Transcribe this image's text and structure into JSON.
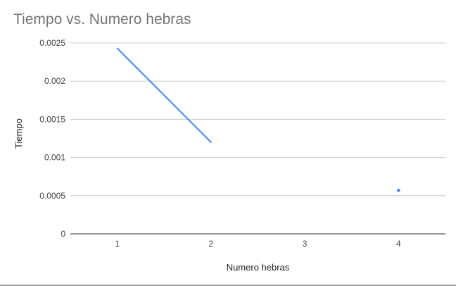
{
  "chart_data": {
    "type": "line",
    "title": "Tiempo vs. Numero hebras",
    "xlabel": "Numero hebras",
    "ylabel": "Tiempo",
    "categories": [
      "1",
      "2",
      "3",
      "4"
    ],
    "x": [
      1,
      2,
      3,
      4
    ],
    "series": [
      {
        "values": [
          0.00243,
          0.0012,
          null,
          0.00057
        ],
        "color": "#4285f4"
      }
    ],
    "ylim": [
      0,
      0.0025
    ],
    "yticks": [
      "0",
      "0.0005",
      "0.001",
      "0.0015",
      "0.002",
      "0.0025"
    ],
    "ytick_values": [
      0,
      0.0005,
      0.001,
      0.0015,
      0.002,
      0.0025
    ],
    "grid": true,
    "legend": "none"
  }
}
